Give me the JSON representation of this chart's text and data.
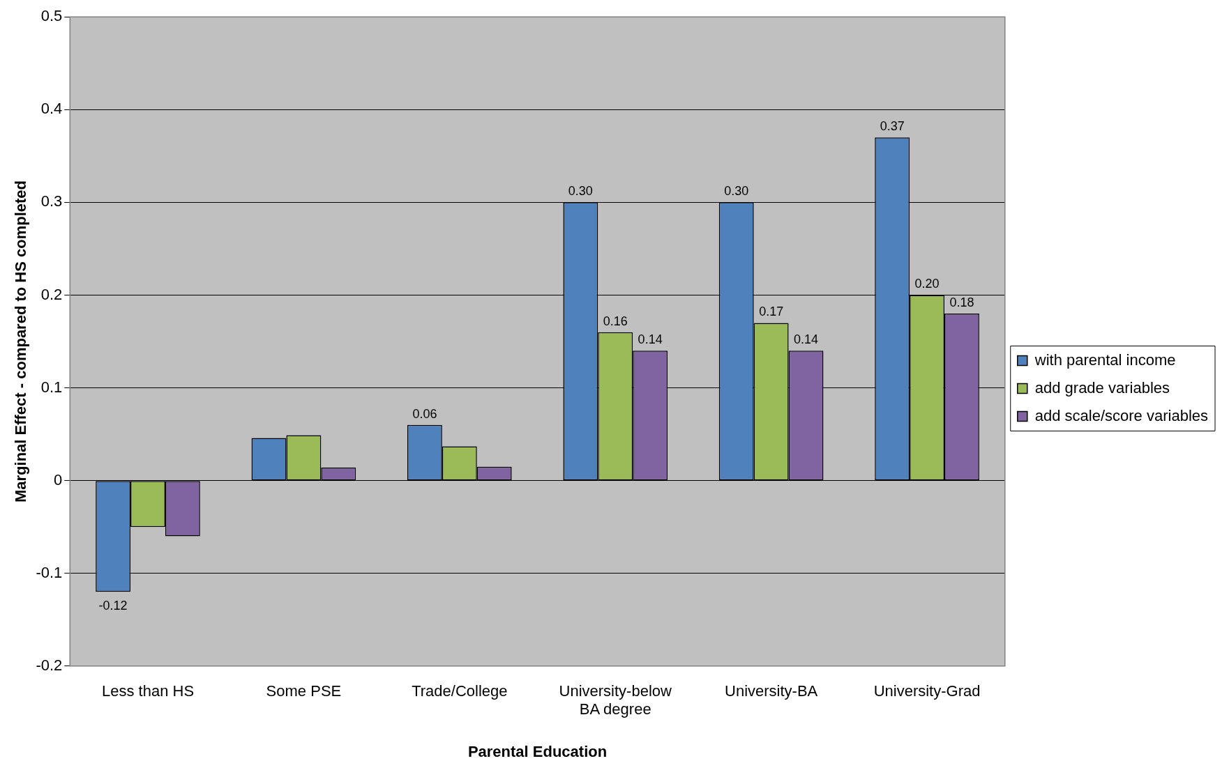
{
  "chart_data": {
    "type": "bar",
    "xlabel": "Parental Education",
    "ylabel": "Marginal Effect - compared to HS completed",
    "categories": [
      "Less than HS",
      "Some PSE",
      "Trade/College",
      "University-below BA degree",
      "University-BA",
      "University-Grad"
    ],
    "series": [
      {
        "name": "with parental income",
        "color": "#4f81bd",
        "values": [
          -0.12,
          0.046,
          0.06,
          0.3,
          0.3,
          0.37
        ],
        "value_labels": [
          "-0.12",
          null,
          "0.06",
          "0.30",
          "0.30",
          "0.37"
        ]
      },
      {
        "name": "add grade variables",
        "color": "#9bbb59",
        "values": [
          -0.05,
          0.049,
          0.037,
          0.16,
          0.17,
          0.2
        ],
        "value_labels": [
          null,
          null,
          null,
          "0.16",
          "0.17",
          "0.20"
        ]
      },
      {
        "name": "add scale/score variables",
        "color": "#8064a2",
        "values": [
          -0.06,
          0.014,
          0.015,
          0.14,
          0.14,
          0.18
        ],
        "value_labels": [
          null,
          null,
          null,
          "0.14",
          "0.14",
          "0.18"
        ]
      }
    ],
    "ylim": [
      -0.2,
      0.5
    ],
    "yticks": [
      -0.2,
      -0.1,
      0,
      0.1,
      0.2,
      0.3,
      0.4,
      0.5
    ],
    "grid": "y",
    "legend": "right"
  }
}
